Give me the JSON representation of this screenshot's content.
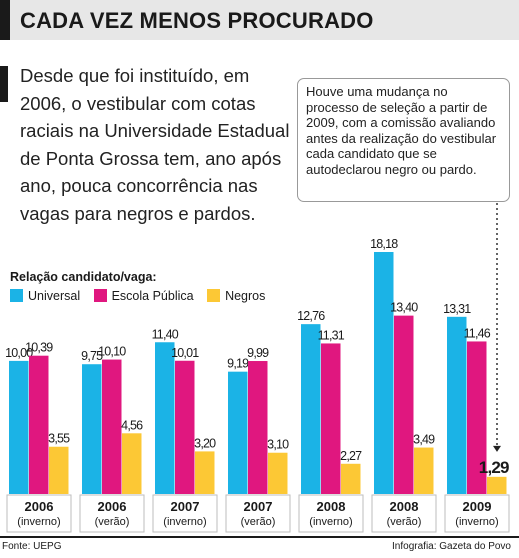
{
  "title": "CADA VEZ MENOS PROCURADO",
  "intro": "Desde que foi instituído, em 2006, o vestibular com cotas raciais na Universidade Estadual de Ponta Grossa tem, ano após ano, pouca concorrência nas vagas para negros e pardos.",
  "note": "Houve uma mudança no processo de seleção a partir de 2009, com a comissão avaliando antes da realização do vestibular cada candidato que se autodeclarou negro ou pardo.",
  "source": "Fonte: UEPG",
  "credit": "Infografia: Gazeta do Povo",
  "colors": {
    "universal": "#1bb3e6",
    "escola_publica": "#e0177f",
    "negros": "#fcc835"
  },
  "chart_data": {
    "type": "bar",
    "title": "Relação candidato/vaga:",
    "categories": [
      {
        "year": "2006",
        "period": "(inverno)"
      },
      {
        "year": "2006",
        "period": "(verão)"
      },
      {
        "year": "2007",
        "period": "(inverno)"
      },
      {
        "year": "2007",
        "period": "(verão)"
      },
      {
        "year": "2008",
        "period": "(inverno)"
      },
      {
        "year": "2008",
        "period": "(verão)"
      },
      {
        "year": "2009",
        "period": "(inverno)"
      }
    ],
    "series": [
      {
        "name": "Universal",
        "values": [
          10.0,
          9.75,
          11.4,
          9.19,
          12.76,
          18.18,
          13.31
        ],
        "labels": [
          "10,00",
          "9,75",
          "11,40",
          "9,19",
          "12,76",
          "18,18",
          "13,31"
        ]
      },
      {
        "name": "Escola Pública",
        "values": [
          10.39,
          10.1,
          10.01,
          9.99,
          11.31,
          13.4,
          11.46
        ],
        "labels": [
          "10,39",
          "10,10",
          "10,01",
          "9,99",
          "11,31",
          "13,40",
          "11,46"
        ]
      },
      {
        "name": "Negros",
        "values": [
          3.55,
          4.56,
          3.2,
          3.1,
          2.27,
          3.49,
          1.29
        ],
        "labels": [
          "3,55",
          "4,56",
          "3,20",
          "3,10",
          "2,27",
          "3,49",
          "1,29"
        ]
      }
    ],
    "highlight": {
      "series": "Negros",
      "category_index": 6
    },
    "ylim": [
      0,
      18.18
    ],
    "grid": false,
    "legend": "top-left"
  }
}
